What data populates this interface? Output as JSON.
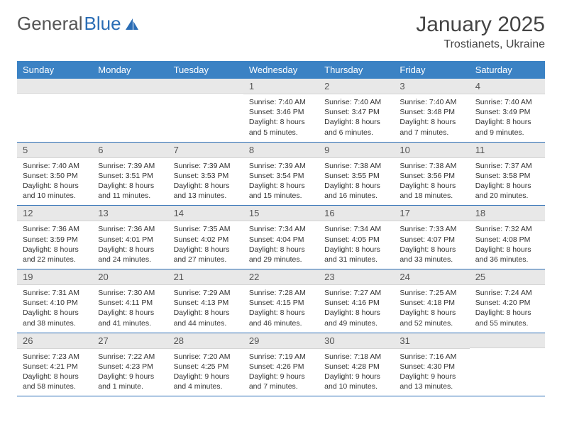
{
  "logo": {
    "text_gray": "General",
    "text_blue": "Blue"
  },
  "title": "January 2025",
  "location": "Trostianets, Ukraine",
  "colors": {
    "header_bg": "#3b82c4",
    "header_text": "#ffffff",
    "daynum_bg": "#e8e8e8",
    "border": "#2a6db5",
    "logo_gray": "#555555",
    "logo_blue": "#2a6db5"
  },
  "daysOfWeek": [
    "Sunday",
    "Monday",
    "Tuesday",
    "Wednesday",
    "Thursday",
    "Friday",
    "Saturday"
  ],
  "weeks": [
    [
      {
        "n": "",
        "sr": "",
        "ss": "",
        "dl": ""
      },
      {
        "n": "",
        "sr": "",
        "ss": "",
        "dl": ""
      },
      {
        "n": "",
        "sr": "",
        "ss": "",
        "dl": ""
      },
      {
        "n": "1",
        "sr": "Sunrise: 7:40 AM",
        "ss": "Sunset: 3:46 PM",
        "dl": "Daylight: 8 hours and 5 minutes."
      },
      {
        "n": "2",
        "sr": "Sunrise: 7:40 AM",
        "ss": "Sunset: 3:47 PM",
        "dl": "Daylight: 8 hours and 6 minutes."
      },
      {
        "n": "3",
        "sr": "Sunrise: 7:40 AM",
        "ss": "Sunset: 3:48 PM",
        "dl": "Daylight: 8 hours and 7 minutes."
      },
      {
        "n": "4",
        "sr": "Sunrise: 7:40 AM",
        "ss": "Sunset: 3:49 PM",
        "dl": "Daylight: 8 hours and 9 minutes."
      }
    ],
    [
      {
        "n": "5",
        "sr": "Sunrise: 7:40 AM",
        "ss": "Sunset: 3:50 PM",
        "dl": "Daylight: 8 hours and 10 minutes."
      },
      {
        "n": "6",
        "sr": "Sunrise: 7:39 AM",
        "ss": "Sunset: 3:51 PM",
        "dl": "Daylight: 8 hours and 11 minutes."
      },
      {
        "n": "7",
        "sr": "Sunrise: 7:39 AM",
        "ss": "Sunset: 3:53 PM",
        "dl": "Daylight: 8 hours and 13 minutes."
      },
      {
        "n": "8",
        "sr": "Sunrise: 7:39 AM",
        "ss": "Sunset: 3:54 PM",
        "dl": "Daylight: 8 hours and 15 minutes."
      },
      {
        "n": "9",
        "sr": "Sunrise: 7:38 AM",
        "ss": "Sunset: 3:55 PM",
        "dl": "Daylight: 8 hours and 16 minutes."
      },
      {
        "n": "10",
        "sr": "Sunrise: 7:38 AM",
        "ss": "Sunset: 3:56 PM",
        "dl": "Daylight: 8 hours and 18 minutes."
      },
      {
        "n": "11",
        "sr": "Sunrise: 7:37 AM",
        "ss": "Sunset: 3:58 PM",
        "dl": "Daylight: 8 hours and 20 minutes."
      }
    ],
    [
      {
        "n": "12",
        "sr": "Sunrise: 7:36 AM",
        "ss": "Sunset: 3:59 PM",
        "dl": "Daylight: 8 hours and 22 minutes."
      },
      {
        "n": "13",
        "sr": "Sunrise: 7:36 AM",
        "ss": "Sunset: 4:01 PM",
        "dl": "Daylight: 8 hours and 24 minutes."
      },
      {
        "n": "14",
        "sr": "Sunrise: 7:35 AM",
        "ss": "Sunset: 4:02 PM",
        "dl": "Daylight: 8 hours and 27 minutes."
      },
      {
        "n": "15",
        "sr": "Sunrise: 7:34 AM",
        "ss": "Sunset: 4:04 PM",
        "dl": "Daylight: 8 hours and 29 minutes."
      },
      {
        "n": "16",
        "sr": "Sunrise: 7:34 AM",
        "ss": "Sunset: 4:05 PM",
        "dl": "Daylight: 8 hours and 31 minutes."
      },
      {
        "n": "17",
        "sr": "Sunrise: 7:33 AM",
        "ss": "Sunset: 4:07 PM",
        "dl": "Daylight: 8 hours and 33 minutes."
      },
      {
        "n": "18",
        "sr": "Sunrise: 7:32 AM",
        "ss": "Sunset: 4:08 PM",
        "dl": "Daylight: 8 hours and 36 minutes."
      }
    ],
    [
      {
        "n": "19",
        "sr": "Sunrise: 7:31 AM",
        "ss": "Sunset: 4:10 PM",
        "dl": "Daylight: 8 hours and 38 minutes."
      },
      {
        "n": "20",
        "sr": "Sunrise: 7:30 AM",
        "ss": "Sunset: 4:11 PM",
        "dl": "Daylight: 8 hours and 41 minutes."
      },
      {
        "n": "21",
        "sr": "Sunrise: 7:29 AM",
        "ss": "Sunset: 4:13 PM",
        "dl": "Daylight: 8 hours and 44 minutes."
      },
      {
        "n": "22",
        "sr": "Sunrise: 7:28 AM",
        "ss": "Sunset: 4:15 PM",
        "dl": "Daylight: 8 hours and 46 minutes."
      },
      {
        "n": "23",
        "sr": "Sunrise: 7:27 AM",
        "ss": "Sunset: 4:16 PM",
        "dl": "Daylight: 8 hours and 49 minutes."
      },
      {
        "n": "24",
        "sr": "Sunrise: 7:25 AM",
        "ss": "Sunset: 4:18 PM",
        "dl": "Daylight: 8 hours and 52 minutes."
      },
      {
        "n": "25",
        "sr": "Sunrise: 7:24 AM",
        "ss": "Sunset: 4:20 PM",
        "dl": "Daylight: 8 hours and 55 minutes."
      }
    ],
    [
      {
        "n": "26",
        "sr": "Sunrise: 7:23 AM",
        "ss": "Sunset: 4:21 PM",
        "dl": "Daylight: 8 hours and 58 minutes."
      },
      {
        "n": "27",
        "sr": "Sunrise: 7:22 AM",
        "ss": "Sunset: 4:23 PM",
        "dl": "Daylight: 9 hours and 1 minute."
      },
      {
        "n": "28",
        "sr": "Sunrise: 7:20 AM",
        "ss": "Sunset: 4:25 PM",
        "dl": "Daylight: 9 hours and 4 minutes."
      },
      {
        "n": "29",
        "sr": "Sunrise: 7:19 AM",
        "ss": "Sunset: 4:26 PM",
        "dl": "Daylight: 9 hours and 7 minutes."
      },
      {
        "n": "30",
        "sr": "Sunrise: 7:18 AM",
        "ss": "Sunset: 4:28 PM",
        "dl": "Daylight: 9 hours and 10 minutes."
      },
      {
        "n": "31",
        "sr": "Sunrise: 7:16 AM",
        "ss": "Sunset: 4:30 PM",
        "dl": "Daylight: 9 hours and 13 minutes."
      },
      {
        "n": "",
        "sr": "",
        "ss": "",
        "dl": ""
      }
    ]
  ]
}
